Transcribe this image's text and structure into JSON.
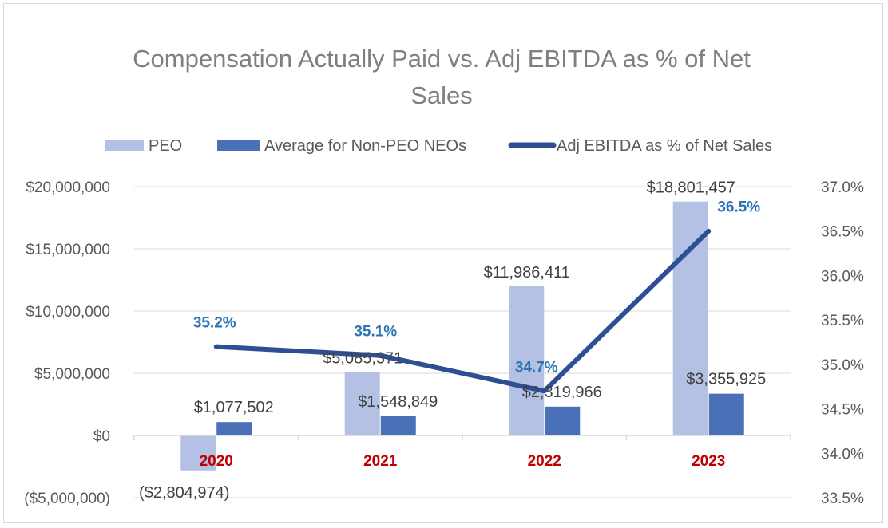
{
  "chart_data": {
    "type": "bar",
    "title_lines": [
      "Compensation Actually Paid vs. Adj EBITDA as % of Net",
      "Sales"
    ],
    "categories": [
      "2020",
      "2021",
      "2022",
      "2023"
    ],
    "series": [
      {
        "name": "PEO",
        "kind": "bar",
        "axis": "left",
        "color": "#b4c0e4",
        "values": [
          -2804974,
          5085371,
          11986411,
          18801457
        ],
        "labels": [
          "($2,804,974)",
          "$5,085,371",
          "$11,986,411",
          "$18,801,457"
        ]
      },
      {
        "name": "Average for Non-PEO NEOs",
        "kind": "bar",
        "axis": "left",
        "color": "#4a70b8",
        "values": [
          1077502,
          1548849,
          2319966,
          3355925
        ],
        "labels": [
          "$1,077,502",
          "$1,548,849",
          "$2,319,966",
          "$3,355,925"
        ]
      },
      {
        "name": "Adj EBITDA as % of Net  Sales",
        "kind": "line",
        "axis": "right",
        "color": "#2f4f95",
        "values": [
          35.2,
          35.1,
          34.7,
          36.5
        ],
        "labels": [
          "35.2%",
          "35.1%",
          "34.7%",
          "36.5%"
        ]
      }
    ],
    "y_left": {
      "min": -5000000,
      "max": 20000000,
      "ticks": [
        20000000,
        15000000,
        10000000,
        5000000,
        0,
        -5000000
      ],
      "tick_labels": [
        "$20,000,000",
        "$15,000,000",
        "$10,000,000",
        "$5,000,000",
        "$0",
        "($5,000,000)"
      ]
    },
    "y_right": {
      "min": 33.5,
      "max": 37.0,
      "ticks": [
        37.0,
        36.5,
        36.0,
        35.5,
        35.0,
        34.5,
        34.0,
        33.5
      ],
      "tick_labels": [
        "37.0%",
        "36.5%",
        "36.0%",
        "35.5%",
        "35.0%",
        "34.5%",
        "34.0%",
        "33.5%"
      ]
    },
    "grid": true,
    "legend_position": "top",
    "category_label_color": "#c00000",
    "line_label_color": "#2e75b6"
  }
}
